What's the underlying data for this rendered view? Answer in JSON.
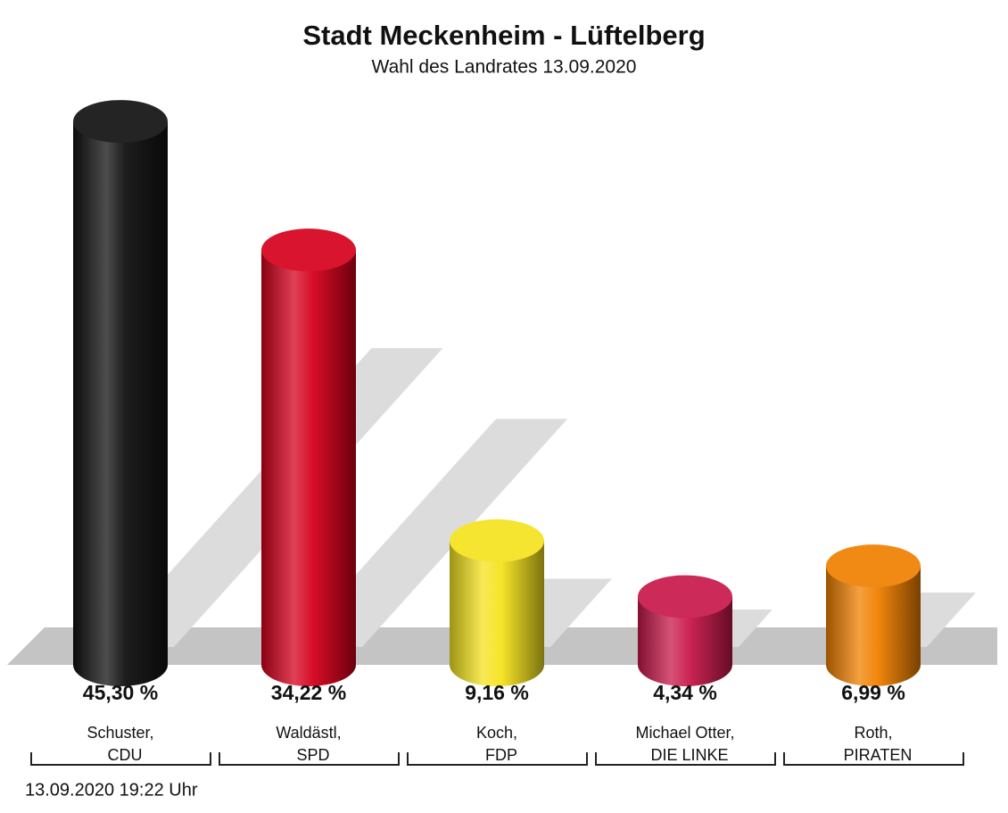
{
  "chart_data": {
    "type": "bar",
    "title": "Stadt Meckenheim - Lüftelberg",
    "subtitle": "Wahl des Landrates 13.09.2020",
    "categories": [
      [
        "Schuster,",
        "CDU"
      ],
      [
        "Waldästl,",
        "SPD"
      ],
      [
        "Koch,",
        "FDP"
      ],
      [
        "Michael Otter,",
        "DIE LINKE"
      ],
      [
        "Roth,",
        "PIRATEN"
      ]
    ],
    "values": [
      45.3,
      34.22,
      9.16,
      4.34,
      6.99
    ],
    "value_labels": [
      "45,30 %",
      "34,22 %",
      "9,16 %",
      "4,34 %",
      "6,99 %"
    ],
    "colors": [
      "#111111",
      "#d5001c",
      "#f5e31e",
      "#c8184a",
      "#f08000"
    ],
    "timestamp": "13.09.2020 19:22 Uhr"
  }
}
